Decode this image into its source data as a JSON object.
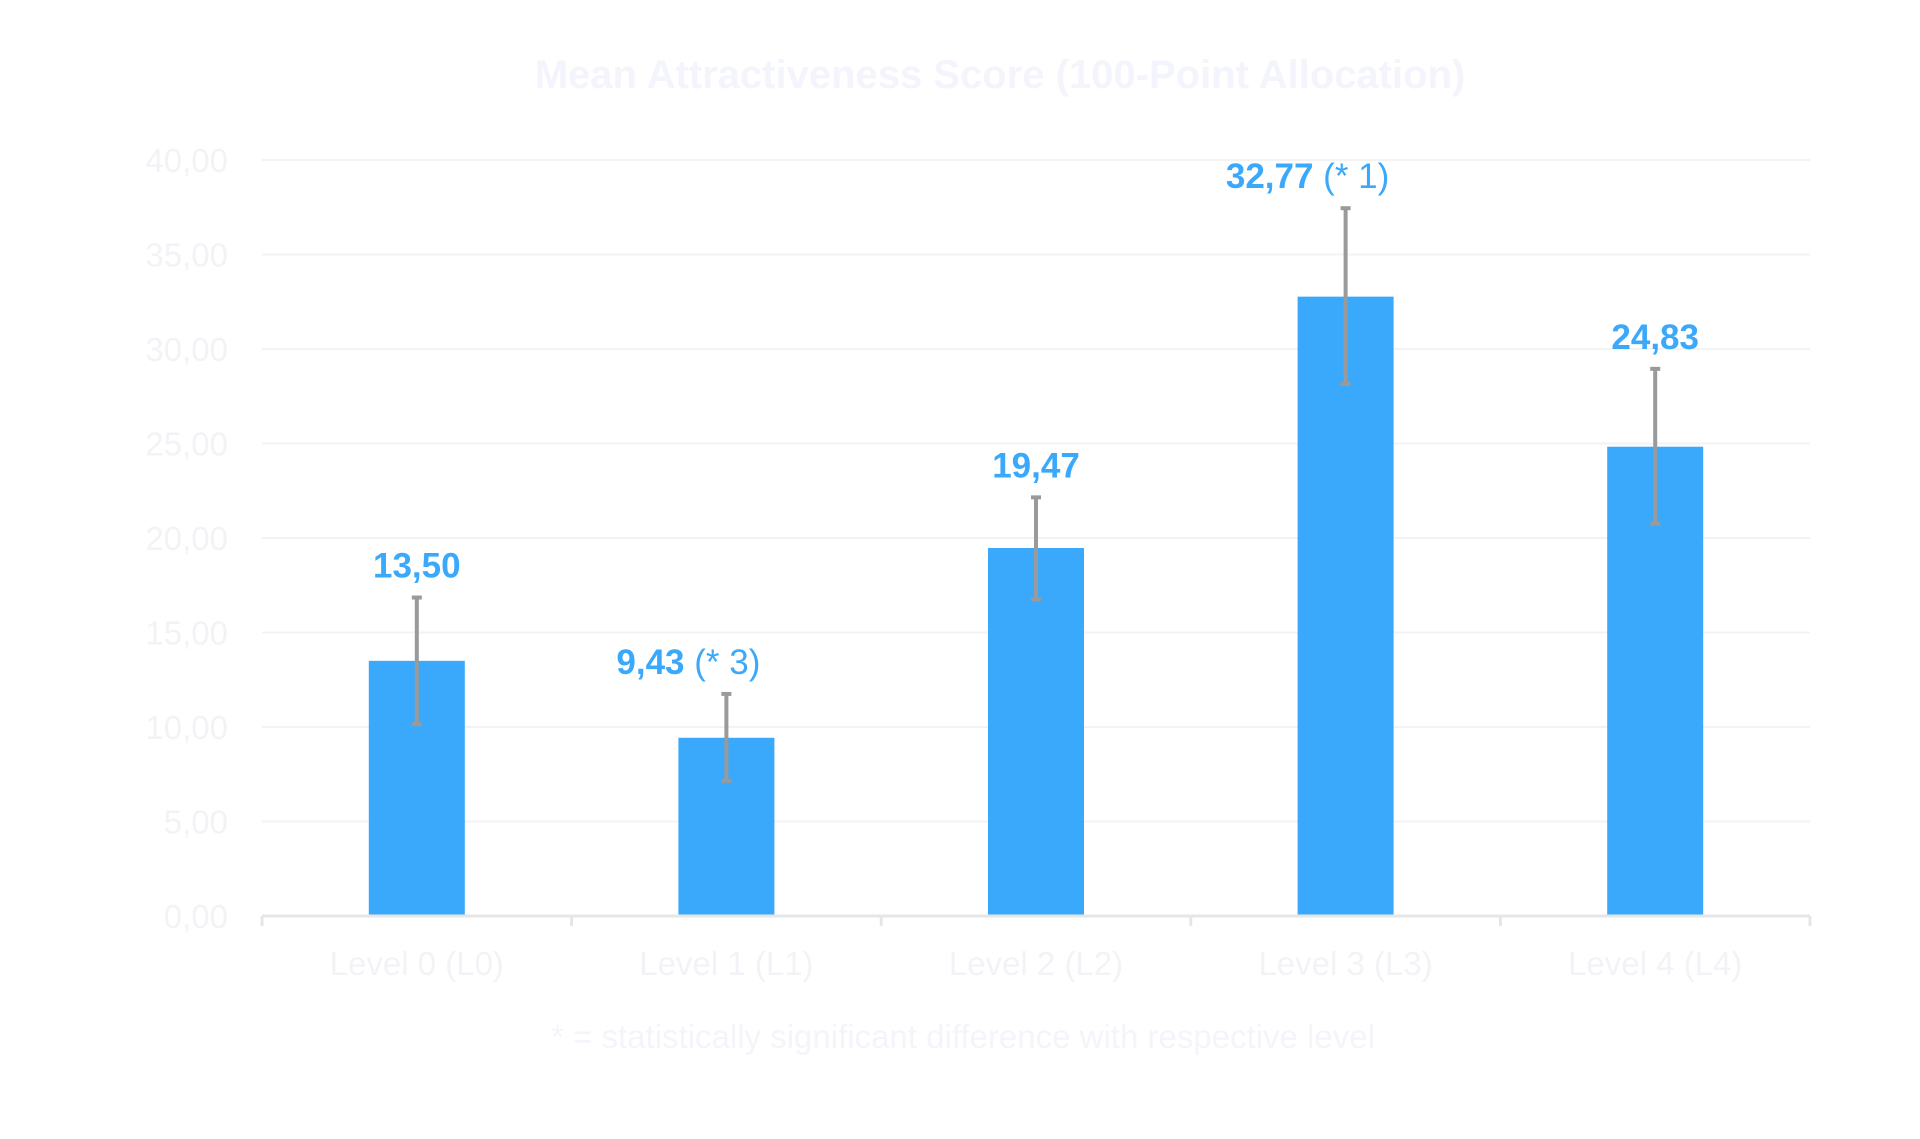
{
  "chart_data": {
    "type": "bar",
    "title": "Mean Attractiveness Score (100-Point Allocation)",
    "categories": [
      "Level 0 (L0)",
      "Level 1 (L1)",
      "Level 2 (L2)",
      "Level 3 (L3)",
      "Level 4 (L4)"
    ],
    "values": [
      13.5,
      9.43,
      19.47,
      32.77,
      24.83
    ],
    "value_labels": [
      "13,50",
      "9,43",
      "19,47",
      "32,77",
      "24,83"
    ],
    "significance_labels": [
      "",
      "(* 3)",
      "",
      "(* 1)",
      ""
    ],
    "error_bars": {
      "upper": [
        16.85,
        11.75,
        22.15,
        37.45,
        28.95
      ],
      "lower": [
        10.15,
        7.15,
        16.75,
        28.15,
        20.75
      ]
    },
    "y_ticks": [
      "0,00",
      "5,00",
      "10,00",
      "15,00",
      "20,00",
      "25,00",
      "30,00",
      "35,00",
      "40,00"
    ],
    "ylim": [
      0,
      40
    ],
    "footnote": "* = statistically significant difference with respective level",
    "colors": {
      "bar": "#3aa9fb",
      "error_bar": "#9a9a9a",
      "value_label": "#3aa9fb",
      "gridline": "#f3f3f3",
      "axis": "#e6e6e6"
    }
  }
}
